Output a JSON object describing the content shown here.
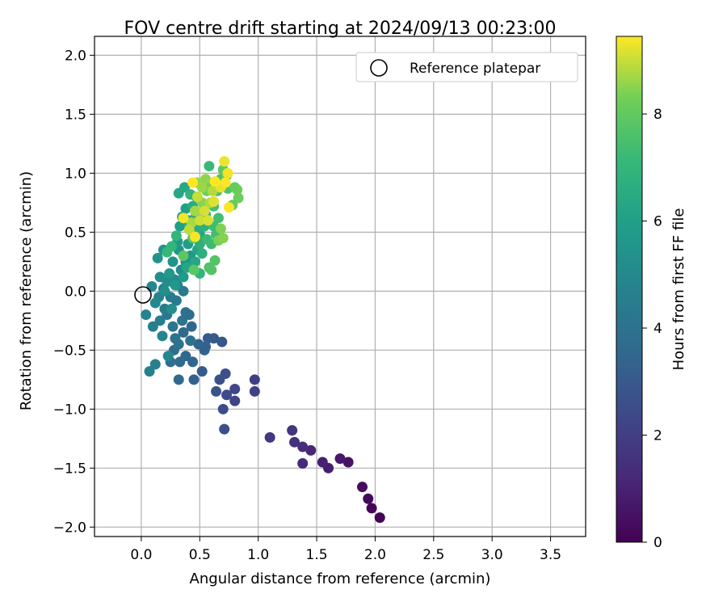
{
  "chart_data": {
    "type": "scatter",
    "title": "FOV centre drift starting at 2024/09/13 00:23:00",
    "xlabel": "Angular distance from reference (arcmin)",
    "ylabel": "Rotation from reference (arcmin)",
    "xlim": [
      -0.4,
      3.8
    ],
    "ylim": [
      -2.08,
      2.16
    ],
    "xticks": [
      "0.0",
      "0.5",
      "1.0",
      "1.5",
      "2.0",
      "2.5",
      "3.0",
      "3.5"
    ],
    "yticks": [
      "2.0",
      "1.5",
      "1.0",
      "0.5",
      "0.0",
      "−0.5",
      "−1.0",
      "−1.5",
      "−2.0"
    ],
    "grid": true,
    "legend": {
      "position": "top-right",
      "entries": [
        "Reference platepar"
      ]
    },
    "reference_point": {
      "x": 0.0,
      "y": 0.0
    },
    "colorbar": {
      "label": "Hours from first FF file",
      "range": [
        0,
        9.45
      ],
      "ticks": [
        "0",
        "2",
        "4",
        "6",
        "8"
      ],
      "colormap": "viridis"
    },
    "series": [
      {
        "points": [
          [
            2.04,
            -1.92,
            0.05
          ],
          [
            1.97,
            -1.84,
            0.15
          ],
          [
            1.94,
            -1.76,
            0.25
          ],
          [
            1.89,
            -1.66,
            0.35
          ],
          [
            1.77,
            -1.45,
            0.5
          ],
          [
            1.7,
            -1.42,
            0.7
          ],
          [
            1.6,
            -1.5,
            0.85
          ],
          [
            1.55,
            -1.45,
            1.0
          ],
          [
            1.45,
            -1.35,
            1.15
          ],
          [
            1.38,
            -1.46,
            1.3
          ],
          [
            1.38,
            -1.32,
            1.4
          ],
          [
            1.31,
            -1.28,
            1.5
          ],
          [
            1.29,
            -1.18,
            1.6
          ],
          [
            1.1,
            -1.24,
            1.8
          ],
          [
            0.97,
            -0.75,
            2.0
          ],
          [
            0.97,
            -0.85,
            2.1
          ],
          [
            0.8,
            -0.93,
            2.2
          ],
          [
            0.8,
            -0.83,
            2.3
          ],
          [
            0.73,
            -0.88,
            2.4
          ],
          [
            0.7,
            -1.0,
            2.5
          ],
          [
            0.71,
            -1.17,
            2.55
          ],
          [
            0.72,
            -0.7,
            2.6
          ],
          [
            0.67,
            -0.75,
            2.7
          ],
          [
            0.64,
            -0.85,
            2.8
          ],
          [
            0.69,
            -0.43,
            2.9
          ],
          [
            0.62,
            -0.4,
            3.0
          ],
          [
            0.57,
            -0.4,
            3.05
          ],
          [
            0.52,
            -0.68,
            3.1
          ],
          [
            0.45,
            -0.75,
            3.2
          ],
          [
            0.54,
            -0.5,
            3.3
          ],
          [
            0.55,
            -0.47,
            3.35
          ],
          [
            0.49,
            -0.45,
            3.4
          ],
          [
            0.44,
            -0.6,
            3.45
          ],
          [
            0.43,
            -0.3,
            3.5
          ],
          [
            0.38,
            -0.55,
            3.55
          ],
          [
            0.36,
            -0.35,
            3.6
          ],
          [
            0.33,
            -0.6,
            3.65
          ],
          [
            0.32,
            -0.75,
            3.7
          ],
          [
            0.28,
            -0.5,
            3.75
          ],
          [
            0.25,
            -0.6,
            3.8
          ],
          [
            0.41,
            -0.2,
            3.85
          ],
          [
            0.38,
            -0.18,
            3.9
          ],
          [
            0.42,
            -0.42,
            3.95
          ],
          [
            0.32,
            -0.45,
            4.0
          ],
          [
            0.29,
            -0.4,
            4.05
          ],
          [
            0.35,
            -0.25,
            4.1
          ],
          [
            0.27,
            -0.3,
            4.15
          ],
          [
            0.22,
            -0.2,
            4.2
          ],
          [
            0.3,
            -0.08,
            4.25
          ],
          [
            0.36,
            0.0,
            4.3
          ],
          [
            0.25,
            -0.05,
            4.35
          ],
          [
            0.2,
            -0.15,
            4.4
          ],
          [
            0.31,
            0.05,
            4.45
          ],
          [
            0.19,
            0.02,
            4.5
          ],
          [
            0.16,
            -0.25,
            4.55
          ],
          [
            0.1,
            -0.3,
            4.6
          ],
          [
            0.12,
            -0.62,
            4.65
          ],
          [
            0.07,
            -0.68,
            4.7
          ],
          [
            0.04,
            -0.2,
            4.75
          ],
          [
            0.15,
            -0.05,
            4.8
          ],
          [
            0.18,
            -0.38,
            4.85
          ],
          [
            0.23,
            -0.55,
            4.9
          ],
          [
            0.09,
            0.04,
            4.95
          ],
          [
            0.12,
            -0.1,
            5.0
          ],
          [
            0.28,
            0.1,
            5.05
          ],
          [
            0.34,
            0.18,
            5.1
          ],
          [
            0.22,
            0.08,
            5.15
          ],
          [
            0.16,
            0.12,
            5.2
          ],
          [
            0.2,
            0.0,
            5.25
          ],
          [
            0.26,
            -0.15,
            5.3
          ],
          [
            0.38,
            0.25,
            5.35
          ],
          [
            0.27,
            0.25,
            5.4
          ],
          [
            0.14,
            0.28,
            5.45
          ],
          [
            0.19,
            0.35,
            5.5
          ],
          [
            0.32,
            0.35,
            5.55
          ],
          [
            0.42,
            0.3,
            5.6
          ],
          [
            0.24,
            0.15,
            5.65
          ],
          [
            0.29,
            0.05,
            5.7
          ],
          [
            0.36,
            0.12,
            5.75
          ],
          [
            0.31,
            0.42,
            5.8
          ],
          [
            0.4,
            0.4,
            5.85
          ],
          [
            0.33,
            0.55,
            5.9
          ],
          [
            0.35,
            0.63,
            5.95
          ],
          [
            0.38,
            0.7,
            6.0
          ],
          [
            0.45,
            0.45,
            6.05
          ],
          [
            0.42,
            0.55,
            6.1
          ],
          [
            0.48,
            0.35,
            6.15
          ],
          [
            0.5,
            0.48,
            6.2
          ],
          [
            0.39,
            0.2,
            6.25
          ],
          [
            0.46,
            0.25,
            6.3
          ],
          [
            0.32,
            0.83,
            6.35
          ],
          [
            0.37,
            0.88,
            6.4
          ],
          [
            0.4,
            0.6,
            6.45
          ],
          [
            0.44,
            0.72,
            6.5
          ],
          [
            0.46,
            0.62,
            6.55
          ],
          [
            0.48,
            0.52,
            6.6
          ],
          [
            0.5,
            0.4,
            6.65
          ],
          [
            0.52,
            0.32,
            6.7
          ],
          [
            0.54,
            0.55,
            6.75
          ],
          [
            0.55,
            0.65,
            6.8
          ],
          [
            0.47,
            0.8,
            6.85
          ],
          [
            0.42,
            0.82,
            6.9
          ],
          [
            0.5,
            0.15,
            6.95
          ],
          [
            0.3,
            0.47,
            7.0
          ],
          [
            0.26,
            0.38,
            7.05
          ],
          [
            0.22,
            0.33,
            7.1
          ],
          [
            0.58,
            1.06,
            7.15
          ],
          [
            0.56,
            0.44,
            7.2
          ],
          [
            0.6,
            0.4,
            7.25
          ],
          [
            0.62,
            0.55,
            7.3
          ],
          [
            0.64,
            0.48,
            7.35
          ],
          [
            0.66,
            0.62,
            7.4
          ],
          [
            0.62,
            0.72,
            7.45
          ],
          [
            0.65,
            0.85,
            7.5
          ],
          [
            0.68,
            0.95,
            7.55
          ],
          [
            0.74,
            0.87,
            7.6
          ],
          [
            0.58,
            0.2,
            7.65
          ],
          [
            0.6,
            0.18,
            7.7
          ],
          [
            0.63,
            0.26,
            7.75
          ],
          [
            0.44,
            0.45,
            7.8
          ],
          [
            0.45,
            0.18,
            7.85
          ],
          [
            0.36,
            0.3,
            7.9
          ],
          [
            0.7,
            1.03,
            7.95
          ],
          [
            0.73,
            0.98,
            8.0
          ],
          [
            0.78,
            0.73,
            8.05
          ],
          [
            0.8,
            0.88,
            8.1
          ],
          [
            0.82,
            0.86,
            8.15
          ],
          [
            0.83,
            0.79,
            8.2
          ],
          [
            0.56,
            0.85,
            8.25
          ],
          [
            0.58,
            0.92,
            8.3
          ],
          [
            0.66,
            0.43,
            8.35
          ],
          [
            0.68,
            0.53,
            8.4
          ],
          [
            0.7,
            0.45,
            8.45
          ],
          [
            0.52,
            0.75,
            8.5
          ],
          [
            0.55,
            0.95,
            8.55
          ],
          [
            0.48,
            0.92,
            8.6
          ],
          [
            0.52,
            0.88,
            8.65
          ],
          [
            0.46,
            0.68,
            8.7
          ],
          [
            0.43,
            0.58,
            8.75
          ],
          [
            0.59,
            0.75,
            8.8
          ],
          [
            0.61,
            0.85,
            8.85
          ],
          [
            0.65,
            0.9,
            8.9
          ],
          [
            0.41,
            0.52,
            8.95
          ],
          [
            0.48,
            0.8,
            9.0
          ],
          [
            0.5,
            0.6,
            9.05
          ],
          [
            0.54,
            0.68,
            9.1
          ],
          [
            0.57,
            0.6,
            9.15
          ],
          [
            0.62,
            0.76,
            9.2
          ],
          [
            0.68,
            0.88,
            9.25
          ],
          [
            0.71,
            1.1,
            9.3
          ],
          [
            0.74,
            1.0,
            9.35
          ],
          [
            0.36,
            0.62,
            9.38
          ],
          [
            0.46,
            0.46,
            9.4
          ],
          [
            0.75,
            0.71,
            9.42
          ],
          [
            0.72,
            0.92,
            9.43
          ],
          [
            0.44,
            0.92,
            9.45
          ],
          [
            0.63,
            0.93,
            9.45
          ]
        ]
      }
    ]
  }
}
